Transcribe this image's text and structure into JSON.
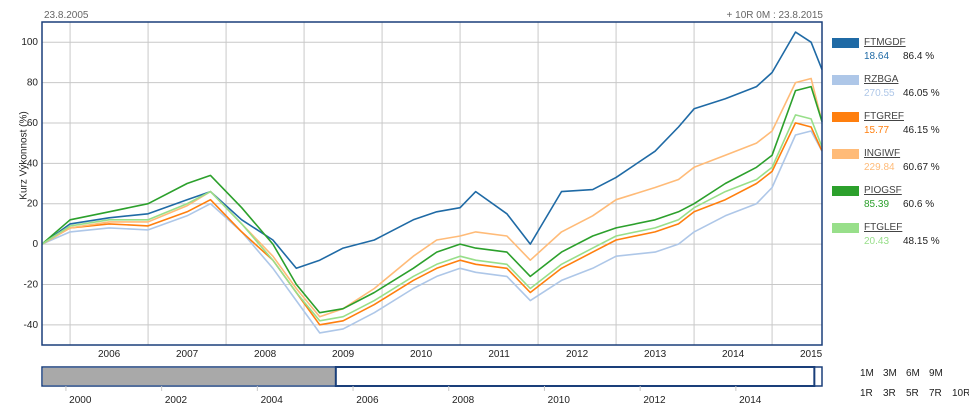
{
  "header": {
    "start_date": "23.8.2005",
    "range_text": "+ 10R 0M : 23.8.2015"
  },
  "y_axis_label": "Kurz   Výkonnost (%)",
  "colors": {
    "grid": "#c8c8c8",
    "border": "#1a3f7a",
    "navigator_fill": "#a9a9a9"
  },
  "legend": [
    {
      "name": "FTMGDF",
      "price": "18.64",
      "perf": "86.4 %",
      "color": "#1f6aa5"
    },
    {
      "name": "RZBGA",
      "price": "270.55",
      "perf": "46.05 %",
      "color": "#aec7e8"
    },
    {
      "name": "FTGREF",
      "price": "15.77",
      "perf": "46.15 %",
      "color": "#ff7f0e"
    },
    {
      "name": "INGIWF",
      "price": "229.84",
      "perf": "60.67 %",
      "color": "#ffbb78"
    },
    {
      "name": "PIOGSF",
      "price": "85.39",
      "perf": "60.6 %",
      "color": "#2ca02c"
    },
    {
      "name": "FTGLEF",
      "price": "20.43",
      "perf": "48.15 %",
      "color": "#98df8a"
    }
  ],
  "range_buttons": {
    "row1": [
      "1M",
      "3M",
      "6M",
      "9M"
    ],
    "row2": [
      "1R",
      "3R",
      "5R",
      "7R",
      "10R"
    ]
  },
  "navigator": {
    "ticks": [
      "2000",
      "2002",
      "2004",
      "2006",
      "2008",
      "2010",
      "2012",
      "2014"
    ],
    "selected_from": 2005.64,
    "selected_to": 2015.64
  },
  "chart_data": {
    "type": "line",
    "x_unit": "year",
    "xlim": [
      2005.64,
      2015.64
    ],
    "ylim": [
      -50,
      110
    ],
    "x_ticks": [
      "2006",
      "2007",
      "2008",
      "2009",
      "2010",
      "2011",
      "2012",
      "2013",
      "2014",
      "2015"
    ],
    "y_ticks": [
      "-40",
      "-20",
      "0",
      "20",
      "40",
      "60",
      "80",
      "100"
    ],
    "grid": true,
    "legend_position": "right",
    "series": [
      {
        "name": "FTMGDF",
        "x": [
          2005.64,
          2006.0,
          2006.5,
          2007.0,
          2007.5,
          2007.8,
          2008.2,
          2008.6,
          2008.9,
          2009.2,
          2009.5,
          2009.9,
          2010.4,
          2010.7,
          2011.0,
          2011.2,
          2011.6,
          2011.9,
          2012.3,
          2012.7,
          2013.0,
          2013.5,
          2013.8,
          2014.0,
          2014.4,
          2014.8,
          2015.0,
          2015.3,
          2015.5,
          2015.64
        ],
        "values": [
          0,
          10,
          13,
          15,
          22,
          26,
          12,
          2,
          -12,
          -8,
          -2,
          2,
          12,
          16,
          18,
          26,
          15,
          0,
          26,
          27,
          33,
          46,
          58,
          67,
          72,
          78,
          85,
          105,
          100,
          86.4
        ]
      },
      {
        "name": "RZBGA",
        "x": [
          2005.64,
          2006.0,
          2006.5,
          2007.0,
          2007.5,
          2007.8,
          2008.2,
          2008.6,
          2008.9,
          2009.2,
          2009.5,
          2009.9,
          2010.4,
          2010.7,
          2011.0,
          2011.2,
          2011.6,
          2011.9,
          2012.3,
          2012.7,
          2013.0,
          2013.5,
          2013.8,
          2014.0,
          2014.4,
          2014.8,
          2015.0,
          2015.3,
          2015.5,
          2015.64
        ],
        "values": [
          0,
          6,
          8,
          7,
          14,
          20,
          6,
          -12,
          -28,
          -44,
          -42,
          -34,
          -22,
          -16,
          -12,
          -14,
          -16,
          -28,
          -18,
          -12,
          -6,
          -4,
          0,
          6,
          14,
          20,
          28,
          54,
          56,
          46.05
        ]
      },
      {
        "name": "FTGREF",
        "x": [
          2005.64,
          2006.0,
          2006.5,
          2007.0,
          2007.5,
          2007.8,
          2008.2,
          2008.6,
          2008.9,
          2009.2,
          2009.5,
          2009.9,
          2010.4,
          2010.7,
          2011.0,
          2011.2,
          2011.6,
          2011.9,
          2012.3,
          2012.7,
          2013.0,
          2013.5,
          2013.8,
          2014.0,
          2014.4,
          2014.8,
          2015.0,
          2015.3,
          2015.5,
          2015.64
        ],
        "values": [
          0,
          8,
          10,
          9,
          16,
          22,
          6,
          -8,
          -24,
          -40,
          -38,
          -30,
          -18,
          -12,
          -8,
          -10,
          -12,
          -24,
          -12,
          -4,
          2,
          6,
          10,
          16,
          22,
          30,
          36,
          60,
          58,
          46.15
        ]
      },
      {
        "name": "INGIWF",
        "x": [
          2005.64,
          2006.0,
          2006.5,
          2007.0,
          2007.5,
          2007.8,
          2008.2,
          2008.6,
          2008.9,
          2009.2,
          2009.5,
          2009.9,
          2010.4,
          2010.7,
          2011.0,
          2011.2,
          2011.6,
          2011.9,
          2012.3,
          2012.7,
          2013.0,
          2013.5,
          2013.8,
          2014.0,
          2014.4,
          2014.8,
          2015.0,
          2015.3,
          2015.5,
          2015.64
        ],
        "values": [
          0,
          8,
          11,
          11,
          19,
          26,
          10,
          -6,
          -22,
          -36,
          -32,
          -22,
          -6,
          2,
          4,
          6,
          4,
          -8,
          6,
          14,
          22,
          28,
          32,
          38,
          44,
          50,
          56,
          80,
          82,
          60.67
        ]
      },
      {
        "name": "PIOGSF",
        "x": [
          2005.64,
          2006.0,
          2006.5,
          2007.0,
          2007.5,
          2007.8,
          2008.2,
          2008.6,
          2008.9,
          2009.2,
          2009.5,
          2009.9,
          2010.4,
          2010.7,
          2011.0,
          2011.2,
          2011.6,
          2011.9,
          2012.3,
          2012.7,
          2013.0,
          2013.5,
          2013.8,
          2014.0,
          2014.4,
          2014.8,
          2015.0,
          2015.3,
          2015.5,
          2015.64
        ],
        "values": [
          0,
          12,
          16,
          20,
          30,
          34,
          18,
          0,
          -20,
          -34,
          -32,
          -24,
          -12,
          -4,
          0,
          -2,
          -4,
          -16,
          -4,
          4,
          8,
          12,
          16,
          20,
          30,
          38,
          44,
          76,
          78,
          60.6
        ]
      },
      {
        "name": "FTGLEF",
        "x": [
          2005.64,
          2006.0,
          2006.5,
          2007.0,
          2007.5,
          2007.8,
          2008.2,
          2008.6,
          2008.9,
          2009.2,
          2009.5,
          2009.9,
          2010.4,
          2010.7,
          2011.0,
          2011.2,
          2011.6,
          2011.9,
          2012.3,
          2012.7,
          2013.0,
          2013.5,
          2013.8,
          2014.0,
          2014.4,
          2014.8,
          2015.0,
          2015.3,
          2015.5,
          2015.64
        ],
        "values": [
          0,
          9,
          12,
          12,
          20,
          26,
          10,
          -8,
          -24,
          -38,
          -36,
          -28,
          -16,
          -10,
          -6,
          -8,
          -10,
          -22,
          -10,
          -2,
          4,
          8,
          12,
          18,
          26,
          32,
          38,
          64,
          62,
          48.15
        ]
      }
    ]
  }
}
